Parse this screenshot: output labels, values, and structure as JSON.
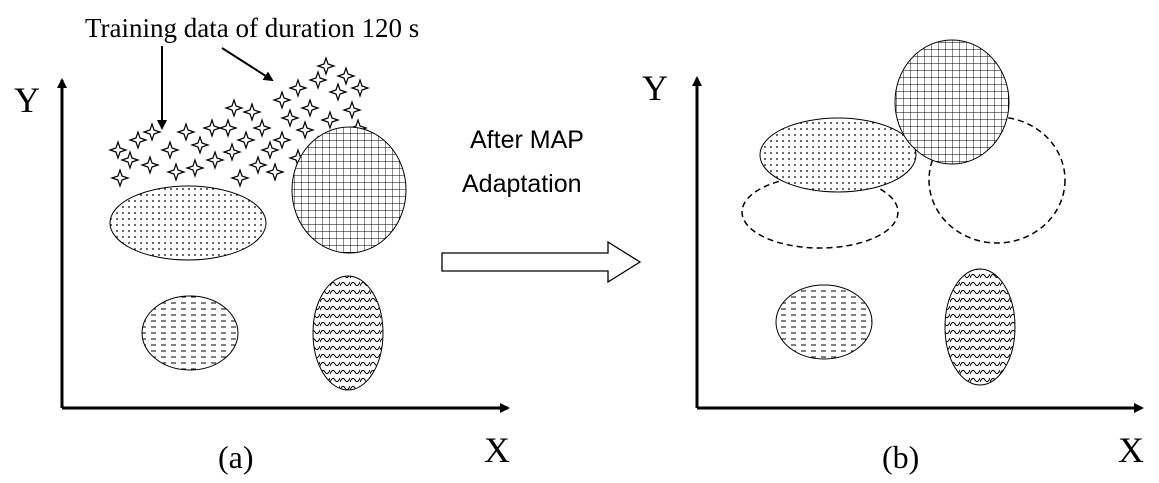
{
  "annotation": "Training data of duration 120 s",
  "panels": [
    {
      "y_label": "Y",
      "x_label": "X",
      "caption": "(a)"
    },
    {
      "y_label": "Y",
      "x_label": "X",
      "caption": "(b)"
    }
  ],
  "transition": {
    "line1": "After MAP",
    "line2": "Adaptation"
  }
}
